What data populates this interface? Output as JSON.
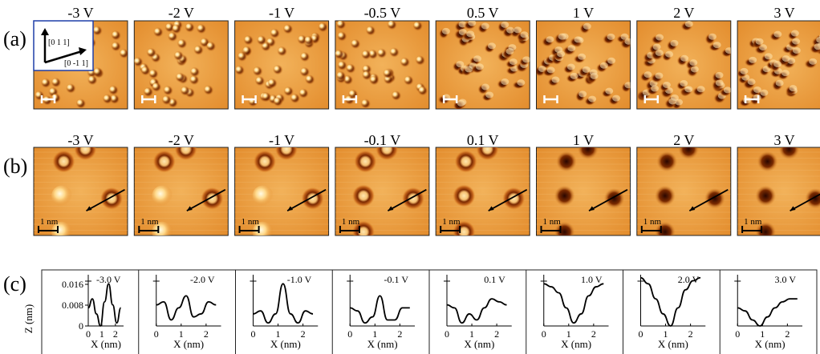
{
  "rows": {
    "a": {
      "label": "(a)",
      "voltages": [
        "-3 V",
        "-2 V",
        "-1 V",
        "-0.5 V",
        "0.5 V",
        "1 V",
        "2 V",
        "3 V"
      ]
    },
    "b": {
      "label": "(b)",
      "voltages": [
        "-3 V",
        "-2 V",
        "-1 V",
        "-0.1 V",
        "0.1 V",
        "1 V",
        "2 V",
        "3 V"
      ],
      "scalebar": "1 nm"
    },
    "c": {
      "label": "(c)",
      "ylabel": "Z (nm)",
      "xlabel": "X (nm)",
      "yticks": [
        "0.016",
        "0.008",
        "0"
      ],
      "xticks_first": [
        "0",
        "1",
        "2"
      ],
      "xticks": [
        "0",
        "1",
        "2"
      ]
    }
  },
  "inset": {
    "dir1": "[0 1 1]",
    "dir2": "[0 -1 1]",
    "color": "#1f3fa8"
  },
  "colors": {
    "stm_light": "#ffe0a0",
    "stm_mid": "#e8902e",
    "stm_dark": "#4a1200"
  },
  "chart_data": [
    {
      "type": "line",
      "panel": "c1",
      "voltage_label": "-3.0 V",
      "x": [
        0,
        0.3,
        0.6,
        0.9,
        1.2,
        1.5,
        1.8,
        2.1,
        2.4
      ],
      "y": [
        0.006,
        0.009,
        0.004,
        0.0,
        0.008,
        0.014,
        0.007,
        0.001,
        0.006
      ]
    },
    {
      "type": "line",
      "panel": "c2",
      "voltage_label": "-2.0 V",
      "x": [
        0,
        0.3,
        0.6,
        0.9,
        1.2,
        1.5,
        1.8,
        2.1,
        2.4
      ],
      "y": [
        0.007,
        0.008,
        0.002,
        0.006,
        0.01,
        0.003,
        0.004,
        0.008,
        0.007
      ]
    },
    {
      "type": "line",
      "panel": "c3",
      "voltage_label": "-1.0 V",
      "x": [
        0,
        0.3,
        0.6,
        0.9,
        1.2,
        1.5,
        1.8,
        2.1,
        2.4
      ],
      "y": [
        0.004,
        0.005,
        0.001,
        0.004,
        0.014,
        0.004,
        0.001,
        0.005,
        0.004
      ]
    },
    {
      "type": "line",
      "panel": "c4",
      "voltage_label": "-0.1 V",
      "x": [
        0,
        0.3,
        0.6,
        0.9,
        1.2,
        1.5,
        1.8,
        2.1,
        2.4
      ],
      "y": [
        0.006,
        0.005,
        0.001,
        0.003,
        0.01,
        0.002,
        0.002,
        0.006,
        0.006
      ]
    },
    {
      "type": "line",
      "panel": "c5",
      "voltage_label": "0.1 V",
      "x": [
        0,
        0.3,
        0.6,
        0.9,
        1.2,
        1.5,
        1.8,
        2.1,
        2.4
      ],
      "y": [
        0.007,
        0.006,
        0.001,
        0.004,
        0.002,
        0.006,
        0.009,
        0.008,
        0.007
      ]
    },
    {
      "type": "line",
      "panel": "c6",
      "voltage_label": "1.0 V",
      "x": [
        0,
        0.3,
        0.6,
        0.9,
        1.2,
        1.5,
        1.8,
        2.1,
        2.4
      ],
      "y": [
        0.014,
        0.013,
        0.011,
        0.006,
        0.001,
        0.004,
        0.01,
        0.013,
        0.014
      ]
    },
    {
      "type": "line",
      "panel": "c7",
      "voltage_label": "2.0 V",
      "x": [
        0,
        0.3,
        0.6,
        0.9,
        1.2,
        1.5,
        1.8,
        2.1,
        2.4
      ],
      "y": [
        0.016,
        0.014,
        0.009,
        0.004,
        0.0,
        0.006,
        0.012,
        0.015,
        0.016
      ]
    },
    {
      "type": "line",
      "panel": "c8",
      "voltage_label": "3.0 V",
      "x": [
        0,
        0.3,
        0.6,
        0.9,
        1.2,
        1.5,
        1.8,
        2.1,
        2.4
      ],
      "y": [
        0.006,
        0.005,
        0.002,
        0.0,
        0.003,
        0.006,
        0.008,
        0.009,
        0.009
      ]
    }
  ]
}
